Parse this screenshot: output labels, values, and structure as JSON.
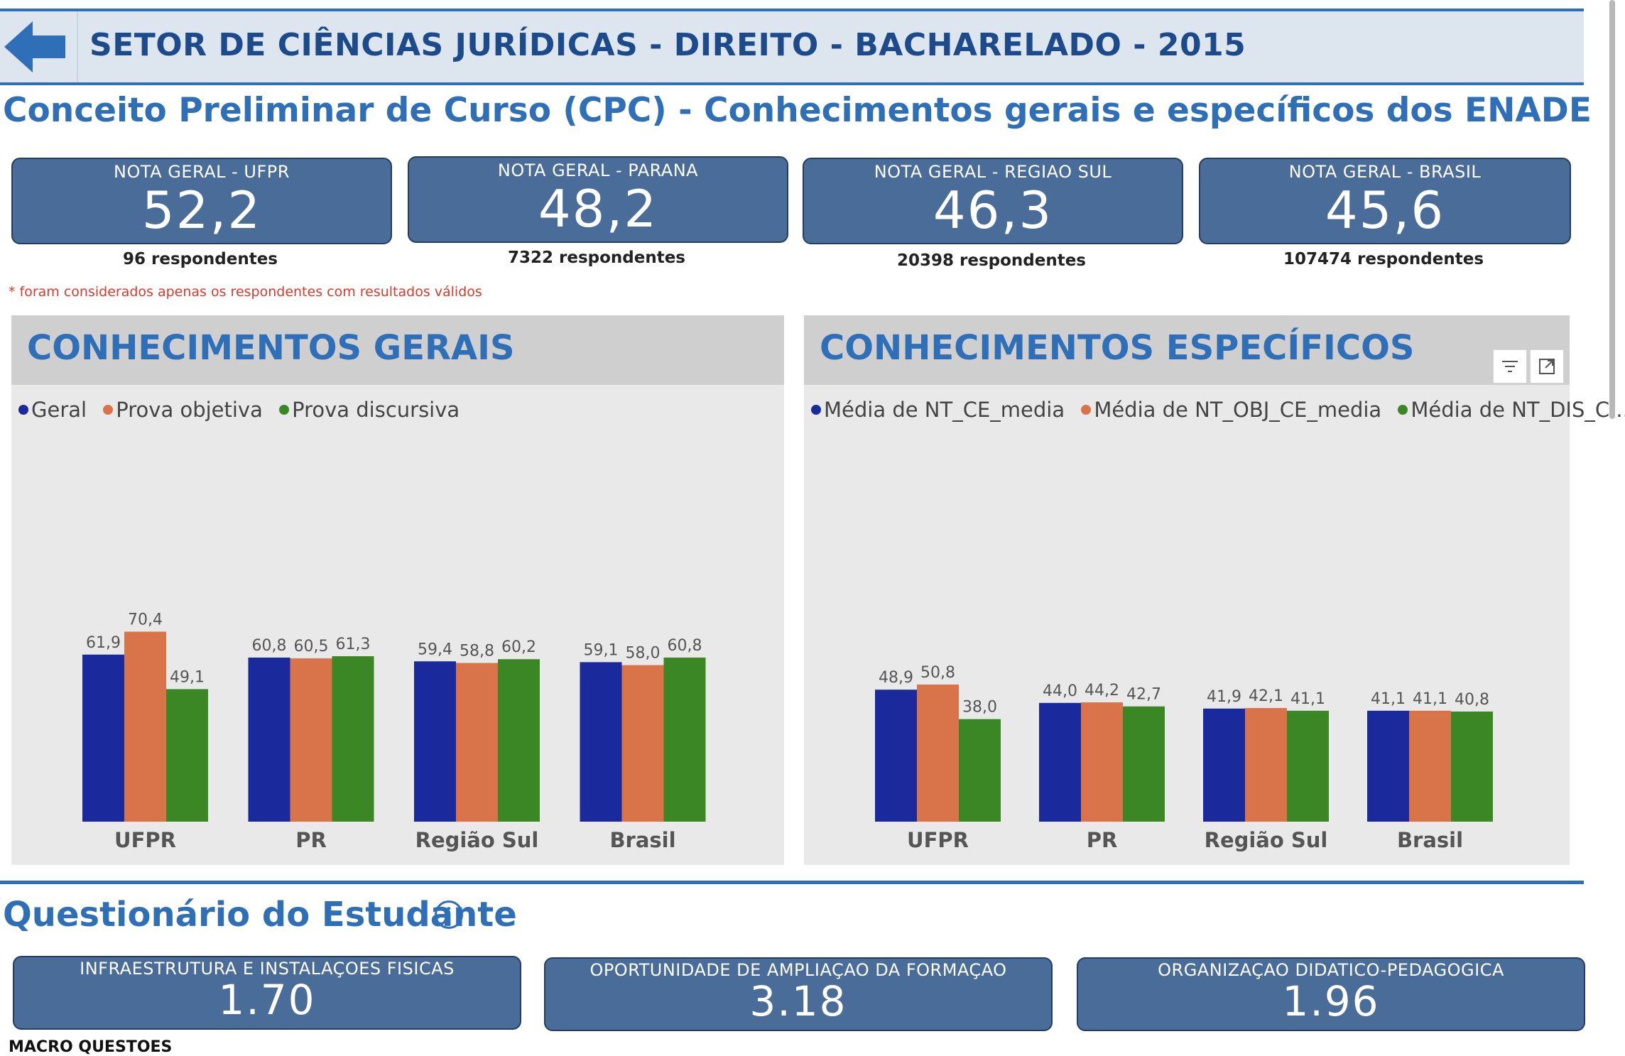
{
  "header": {
    "title": "SETOR DE CIÊNCIAS JURÍDICAS - DIREITO - BACHARELADO - 2015",
    "back_icon": "arrow-left-icon"
  },
  "cpc_title": "Conceito Preliminar de Curso (CPC) - Conhecimentos gerais e específicos dos ENADE",
  "kpis": [
    {
      "label": "NOTA GERAL - UFPR",
      "value": "52,2",
      "respondents": "96 respondentes"
    },
    {
      "label": "NOTA GERAL - PARANA",
      "value": "48,2",
      "respondents": "7322 respondentes"
    },
    {
      "label": "NOTA GERAL - REGIAO SUL",
      "value": "46,3",
      "respondents": "20398 respondentes"
    },
    {
      "label": "NOTA GERAL - BRASIL",
      "value": "45,6",
      "respondents": "107474 respondentes"
    }
  ],
  "footnote": "* foram considerados apenas os respondentes com resultados válidos",
  "colors": {
    "blue": "#1a2a9c",
    "orange": "#d9734a",
    "green": "#3b8725",
    "accent": "#2f6fb7",
    "kpi_bg": "#4a6c98"
  },
  "panels": {
    "gerais": {
      "title": "CONHECIMENTOS GERAIS",
      "legend": [
        "Geral",
        "Prova objetiva",
        "Prova discursiva"
      ]
    },
    "especificos": {
      "title": "CONHECIMENTOS ESPECÍFICOS",
      "legend": [
        "Média de NT_CE_media",
        "Média de NT_OBJ_CE_media",
        "Média de NT_DIS_C..."
      ],
      "toolbar": [
        "filter-icon",
        "focus-mode-icon"
      ]
    }
  },
  "chart_data": [
    {
      "type": "bar",
      "title": "CONHECIMENTOS GERAIS",
      "categories": [
        "UFPR",
        "PR",
        "Região Sul",
        "Brasil"
      ],
      "series": [
        {
          "name": "Geral",
          "values": [
            61.9,
            60.8,
            59.4,
            59.1
          ],
          "labels": [
            "61,9",
            "60,8",
            "59,4",
            "59,1"
          ]
        },
        {
          "name": "Prova objetiva",
          "values": [
            70.4,
            60.5,
            58.8,
            58.0
          ],
          "labels": [
            "70,4",
            "60,5",
            "58,8",
            "58,0"
          ]
        },
        {
          "name": "Prova discursiva",
          "values": [
            49.1,
            61.3,
            60.2,
            60.8
          ],
          "labels": [
            "49,1",
            "61,3",
            "60,2",
            "60,8"
          ]
        }
      ],
      "ylim": [
        0,
        100
      ],
      "legend": "top-left",
      "grid": false
    },
    {
      "type": "bar",
      "title": "CONHECIMENTOS ESPECÍFICOS",
      "categories": [
        "UFPR",
        "PR",
        "Região Sul",
        "Brasil"
      ],
      "series": [
        {
          "name": "Média de NT_CE_media",
          "values": [
            48.9,
            44.0,
            41.9,
            41.1
          ],
          "labels": [
            "48,9",
            "44,0",
            "41,9",
            "41,1"
          ]
        },
        {
          "name": "Média de NT_OBJ_CE_media",
          "values": [
            50.8,
            44.2,
            42.1,
            41.1
          ],
          "labels": [
            "50,8",
            "44,2",
            "42,1",
            "41,1"
          ]
        },
        {
          "name": "Média de NT_DIS_C...",
          "values": [
            38.0,
            42.7,
            41.1,
            40.8
          ],
          "labels": [
            "38,0",
            "42,7",
            "41,1",
            "40,8"
          ]
        }
      ],
      "ylim": [
        0,
        100
      ],
      "legend": "top-left",
      "grid": false
    }
  ],
  "questionario": {
    "title": "Questionário do Estudante",
    "info_icon": "info-icon",
    "kpis": [
      {
        "label": "INFRAESTRUTURA E INSTALAÇOES FISICAS",
        "value": "1.70"
      },
      {
        "label": "OPORTUNIDADE DE AMPLIAÇAO DA FORMAÇAO",
        "value": "3.18"
      },
      {
        "label": "ORGANIZAÇAO DIDATICO-PEDAGOGICA",
        "value": "1.96"
      }
    ],
    "macro_label": "MACRO QUESTOES"
  }
}
